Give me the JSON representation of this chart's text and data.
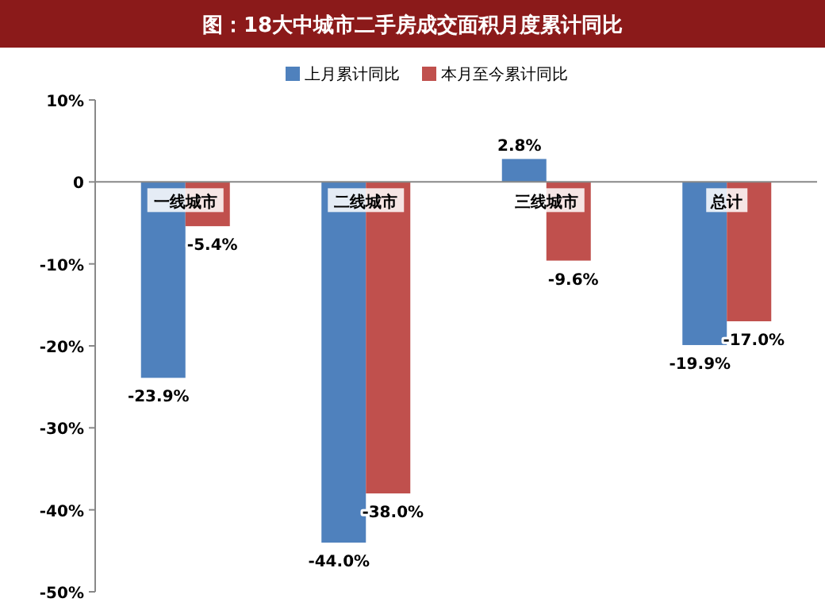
{
  "chart_data": {
    "type": "bar",
    "title": "图：18大中城市二手房成交面积月度累计同比",
    "categories": [
      "一线城市",
      "二线城市",
      "三线城市",
      "总计"
    ],
    "series": [
      {
        "name": "上月累计同比",
        "color": "#4f81bd",
        "values": [
          -23.9,
          -44.0,
          2.8,
          -19.9
        ],
        "value_labels": [
          "-23.9%",
          "-44.0%",
          "2.8%",
          "-19.9%"
        ]
      },
      {
        "name": "本月至今累计同比",
        "color": "#c0504d",
        "values": [
          -5.4,
          -38.0,
          -9.6,
          -17.0
        ],
        "value_labels": [
          "-5.4%",
          "-38.0%",
          "-9.6%",
          "-17.0%"
        ]
      }
    ],
    "ylim": [
      -50,
      10
    ],
    "yticks": [
      {
        "value": 10,
        "label": "10%"
      },
      {
        "value": 0,
        "label": "0"
      },
      {
        "value": -10,
        "label": "-10%"
      },
      {
        "value": -20,
        "label": "-20%"
      },
      {
        "value": -30,
        "label": "-30%"
      },
      {
        "value": -40,
        "label": "-40%"
      },
      {
        "value": -50,
        "label": "-50%"
      }
    ],
    "legend": "top",
    "grid": false
  }
}
